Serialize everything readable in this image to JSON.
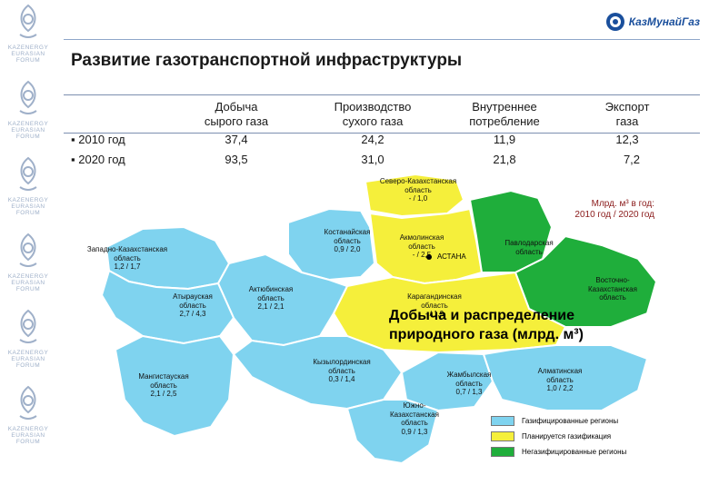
{
  "side_logo": {
    "lines": [
      "KAZENERGY",
      "EURASIAN",
      "FORUM"
    ]
  },
  "brand": {
    "name": "КазМунайГаз",
    "sub": ""
  },
  "title": "Развитие газотранспортной инфраструктуры",
  "table": {
    "columns": [
      "Добыча\nсырого газа",
      "Производство\nсухого газа",
      "Внутреннее\nпотребление",
      "Экспорт\nгаза"
    ],
    "rows": [
      {
        "label": "2010 год",
        "values": [
          "37,4",
          "24,2",
          "11,9",
          "12,3"
        ]
      },
      {
        "label": "2020 год",
        "values": [
          "93,5",
          "31,0",
          "21,8",
          "7,2"
        ]
      }
    ]
  },
  "map": {
    "unit_note": "Млрд. м³ в год:\n2010 год / 2020 год",
    "overlay_title": "Добыча и распределение\nприродного газа (млрд. м³)",
    "capital": "АСТАНА",
    "regions": [
      {
        "name": "Северо-Казахстанская\nобласть",
        "value": "- / 1,0"
      },
      {
        "name": "Костанайская\nобласть",
        "value": "0,9 / 2,0"
      },
      {
        "name": "Акмолинская\nобласть",
        "value": "- / 2,5"
      },
      {
        "name": "Павлодарская\nобласть",
        "value": ""
      },
      {
        "name": "Западно-Казахстанская\nобласть",
        "value": "1,2 / 1,7"
      },
      {
        "name": "Атырауская\nобласть",
        "value": "2,7 / 4,3"
      },
      {
        "name": "Актюбинская\nобласть",
        "value": "2,1 / 2,1"
      },
      {
        "name": "Карагандинская\nобласть",
        "value": "- / 1,9"
      },
      {
        "name": "Восточно-\nКазахстанская\nобласть",
        "value": ""
      },
      {
        "name": "Мангистауская\nобласть",
        "value": "2,1 / 2,5"
      },
      {
        "name": "Кызылординская\nобласть",
        "value": "0,3 / 1,4"
      },
      {
        "name": "Жамбылская\nобласть",
        "value": "0,7 / 1,3"
      },
      {
        "name": "Алматинская\nобласть",
        "value": "1,0 / 2,2"
      },
      {
        "name": "Южно-\nКазахстанская\nобласть",
        "value": "0,9 / 1,3"
      }
    ]
  },
  "legend": [
    {
      "label": "Газифицированные регионы",
      "color": "#7fd3ef"
    },
    {
      "label": "Планируется газификация",
      "color": "#f5ef3b"
    },
    {
      "label": "Негазифицированные регионы",
      "color": "#1fae3b"
    }
  ],
  "colors": {
    "gasified": "#7fd3ef",
    "planned": "#f5ef3b",
    "none": "#1fae3b",
    "border": "#ffffff"
  }
}
